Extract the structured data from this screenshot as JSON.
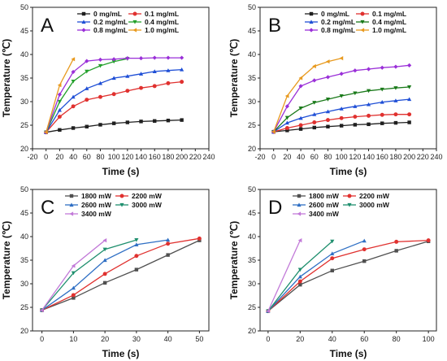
{
  "colors": {
    "black": "#1f1f1f",
    "red": "#e0312f",
    "blue": "#1f4fd6",
    "green": "#23a02b",
    "purple": "#9a2fd8",
    "orange": "#e89a1f",
    "dark_green": "#1a7a1a",
    "gray": "#505050",
    "teal": "#1f8f6e",
    "steel_blue": "#2f6fc4",
    "lavender": "#c27ad8"
  },
  "chart_data": [
    {
      "type": "line",
      "panel_label": "A",
      "xlabel": "Time (s)",
      "ylabel": "Temperature (℃)",
      "xlim": [
        -20,
        240
      ],
      "ylim": [
        20,
        50
      ],
      "xticks": [
        -20,
        0,
        20,
        40,
        60,
        80,
        100,
        120,
        140,
        160,
        180,
        200,
        220,
        240
      ],
      "yticks": [
        20,
        25,
        30,
        35,
        40,
        45,
        50
      ],
      "legend": {
        "columns": 2,
        "placement": "top-right"
      },
      "series": [
        {
          "name": "0  mg/mL",
          "color": "#1f1f1f",
          "marker": "square",
          "x": [
            0,
            20,
            40,
            60,
            80,
            100,
            120,
            140,
            160,
            180,
            200
          ],
          "y": [
            23.5,
            24.0,
            24.4,
            24.7,
            25.1,
            25.4,
            25.6,
            25.8,
            25.9,
            26.0,
            26.1
          ]
        },
        {
          "name": "0.1  mg/mL",
          "color": "#e0312f",
          "marker": "circle",
          "x": [
            0,
            20,
            40,
            60,
            80,
            100,
            120,
            140,
            160,
            180,
            200
          ],
          "y": [
            23.5,
            26.8,
            29.0,
            30.4,
            31.0,
            31.6,
            32.3,
            32.9,
            33.3,
            33.9,
            34.2
          ]
        },
        {
          "name": "0.2  mg/mL",
          "color": "#1f4fd6",
          "marker": "triangle-up",
          "x": [
            0,
            20,
            40,
            60,
            80,
            100,
            120,
            140,
            160,
            180,
            200
          ],
          "y": [
            23.5,
            28.2,
            31.0,
            32.8,
            33.9,
            35.0,
            35.4,
            35.9,
            36.4,
            36.6,
            36.8
          ]
        },
        {
          "name": "0.4  mg/mL",
          "color": "#23a02b",
          "marker": "triangle-down",
          "x": [
            0,
            20,
            40,
            60,
            80,
            100,
            120
          ],
          "y": [
            23.5,
            30.0,
            34.3,
            36.4,
            37.6,
            38.5,
            39.1
          ]
        },
        {
          "name": "0.8  mg/mL",
          "color": "#9a2fd8",
          "marker": "diamond",
          "x": [
            0,
            20,
            40,
            60,
            80,
            100,
            120,
            140,
            160,
            180,
            200
          ],
          "y": [
            23.5,
            31.5,
            36.3,
            38.6,
            38.9,
            39.0,
            39.2,
            39.2,
            39.3,
            39.3,
            39.3
          ]
        },
        {
          "name": "1.0  mg/mL",
          "color": "#e89a1f",
          "marker": "triangle-left",
          "x": [
            0,
            20,
            40
          ],
          "y": [
            23.5,
            33.5,
            39.0
          ]
        }
      ]
    },
    {
      "type": "line",
      "panel_label": "B",
      "xlabel": "Time (s)",
      "ylabel": "Temperature (℃)",
      "xlim": [
        -20,
        240
      ],
      "ylim": [
        20,
        50
      ],
      "xticks": [
        -20,
        0,
        20,
        40,
        60,
        80,
        100,
        120,
        140,
        160,
        180,
        200,
        220,
        240
      ],
      "yticks": [
        20,
        25,
        30,
        35,
        40,
        45,
        50
      ],
      "legend": {
        "columns": 2,
        "placement": "top-right"
      },
      "series": [
        {
          "name": "0  mg/mL",
          "color": "#1f1f1f",
          "marker": "square",
          "x": [
            0,
            20,
            40,
            60,
            80,
            100,
            120,
            140,
            160,
            180,
            200
          ],
          "y": [
            23.6,
            23.9,
            24.2,
            24.5,
            24.7,
            24.9,
            25.1,
            25.2,
            25.4,
            25.5,
            25.6
          ]
        },
        {
          "name": "0.1  mg/mL",
          "color": "#e0312f",
          "marker": "circle",
          "x": [
            0,
            20,
            40,
            60,
            80,
            100,
            120,
            140,
            160,
            180,
            200
          ],
          "y": [
            23.6,
            24.4,
            25.0,
            25.6,
            26.1,
            26.5,
            26.8,
            27.0,
            27.2,
            27.3,
            27.3
          ]
        },
        {
          "name": "0.2  mg/mL",
          "color": "#1f4fd6",
          "marker": "triangle-up",
          "x": [
            0,
            20,
            40,
            60,
            80,
            100,
            120,
            140,
            160,
            180,
            200
          ],
          "y": [
            23.6,
            25.5,
            26.5,
            27.3,
            27.9,
            28.5,
            29.0,
            29.4,
            29.9,
            30.2,
            30.5
          ]
        },
        {
          "name": "0.4  mg/mL",
          "color": "#1a7a1a",
          "marker": "triangle-down",
          "x": [
            0,
            20,
            40,
            60,
            80,
            100,
            120,
            140,
            160,
            180,
            200
          ],
          "y": [
            23.6,
            26.6,
            28.6,
            29.8,
            30.5,
            31.2,
            31.8,
            32.3,
            32.6,
            32.9,
            33.1
          ]
        },
        {
          "name": "0.8  mg/mL",
          "color": "#9a2fd8",
          "marker": "diamond",
          "x": [
            0,
            20,
            40,
            60,
            80,
            100,
            120,
            140,
            160,
            180,
            200
          ],
          "y": [
            23.6,
            29.0,
            33.3,
            34.5,
            35.2,
            35.9,
            36.6,
            36.9,
            37.2,
            37.4,
            37.7
          ]
        },
        {
          "name": "1.0  mg/mL",
          "color": "#e89a1f",
          "marker": "triangle-left",
          "x": [
            0,
            20,
            40,
            60,
            80,
            100
          ],
          "y": [
            23.6,
            31.2,
            35.0,
            37.5,
            38.5,
            39.2
          ]
        }
      ]
    },
    {
      "type": "line",
      "panel_label": "C",
      "xlabel": "Time (s)",
      "ylabel": "Temperature (℃)",
      "xlim": [
        -3,
        53
      ],
      "ylim": [
        20,
        50
      ],
      "xticks": [
        0,
        10,
        20,
        30,
        40,
        50
      ],
      "yticks": [
        20,
        25,
        30,
        35,
        40,
        45,
        50
      ],
      "legend": {
        "columns": 2,
        "placement": "top-right"
      },
      "series": [
        {
          "name": "1800 mW",
          "color": "#505050",
          "marker": "square",
          "x": [
            0,
            10,
            20,
            30,
            40,
            50
          ],
          "y": [
            24.4,
            27.0,
            30.2,
            33.0,
            36.1,
            39.2
          ]
        },
        {
          "name": "2200 mW",
          "color": "#e0312f",
          "marker": "circle",
          "x": [
            0,
            10,
            20,
            30,
            40,
            50
          ],
          "y": [
            24.4,
            27.6,
            32.1,
            35.9,
            38.5,
            39.6
          ]
        },
        {
          "name": "2600 mW",
          "color": "#2f6fc4",
          "marker": "triangle-up",
          "x": [
            0,
            10,
            20,
            30,
            40
          ],
          "y": [
            24.4,
            29.1,
            35.0,
            38.3,
            39.3
          ]
        },
        {
          "name": "3000 mW",
          "color": "#1f8f6e",
          "marker": "triangle-down",
          "x": [
            0,
            10,
            20,
            30
          ],
          "y": [
            24.4,
            32.3,
            37.3,
            39.3
          ]
        },
        {
          "name": "3400 mW",
          "color": "#c27ad8",
          "marker": "triangle-left",
          "x": [
            0,
            10,
            20
          ],
          "y": [
            24.4,
            33.8,
            39.2
          ]
        }
      ]
    },
    {
      "type": "line",
      "panel_label": "D",
      "xlabel": "Time (s)",
      "ylabel": "Temperature (℃)",
      "xlim": [
        -5,
        105
      ],
      "ylim": [
        20,
        50
      ],
      "xticks": [
        0,
        20,
        40,
        60,
        80,
        100
      ],
      "yticks": [
        20,
        25,
        30,
        35,
        40,
        45,
        50
      ],
      "legend": {
        "columns": 2,
        "placement": "top-right"
      },
      "series": [
        {
          "name": "1800 mW",
          "color": "#505050",
          "marker": "square",
          "x": [
            0,
            20,
            40,
            60,
            80,
            100
          ],
          "y": [
            24.2,
            29.8,
            32.8,
            34.8,
            37.0,
            39.0
          ]
        },
        {
          "name": "2200 mW",
          "color": "#e0312f",
          "marker": "circle",
          "x": [
            0,
            20,
            40,
            60,
            80,
            100
          ],
          "y": [
            24.2,
            30.5,
            35.4,
            37.3,
            38.9,
            39.2
          ]
        },
        {
          "name": "2600 mW",
          "color": "#2f6fc4",
          "marker": "triangle-up",
          "x": [
            0,
            20,
            40,
            60
          ],
          "y": [
            24.2,
            31.5,
            36.4,
            39.1
          ]
        },
        {
          "name": "3000 mW",
          "color": "#1f8f6e",
          "marker": "triangle-down",
          "x": [
            0,
            20,
            40
          ],
          "y": [
            24.2,
            33.0,
            39.0
          ]
        },
        {
          "name": "3400 mW",
          "color": "#c27ad8",
          "marker": "triangle-left",
          "x": [
            0,
            20
          ],
          "y": [
            24.2,
            39.2
          ]
        }
      ]
    }
  ]
}
